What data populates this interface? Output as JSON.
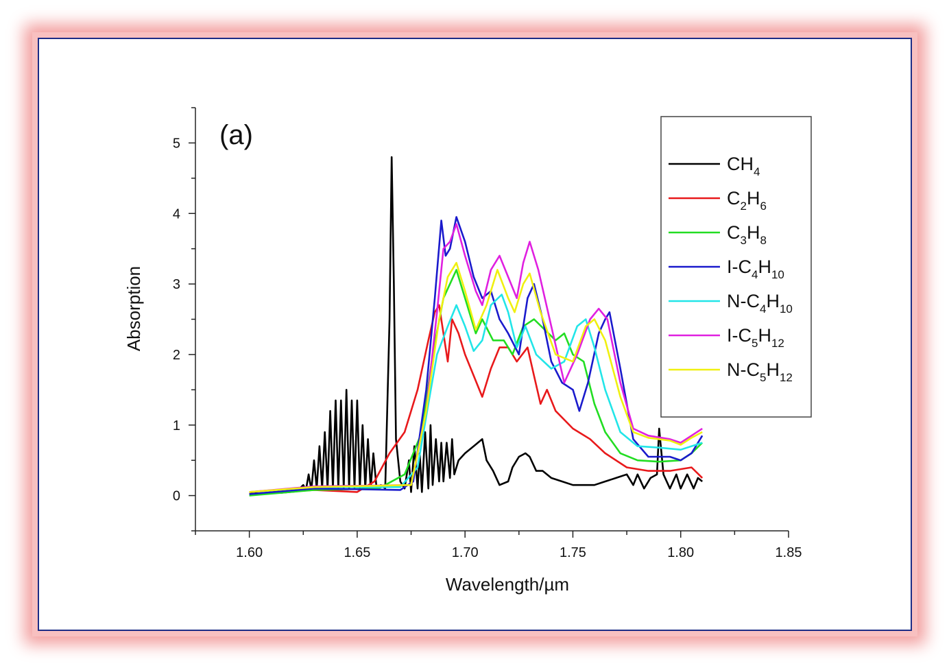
{
  "chart_data": {
    "type": "line",
    "panel_label": "(a)",
    "xlabel": "Wavelength/µm",
    "ylabel": "Absorption",
    "xlim": [
      1.575,
      1.85
    ],
    "ylim": [
      -0.5,
      5.5
    ],
    "xticks": [
      "1.60",
      "1.65",
      "1.70",
      "1.75",
      "1.80",
      "1.85"
    ],
    "yticks": [
      "0",
      "1",
      "2",
      "3",
      "4",
      "5"
    ],
    "grid": false,
    "legend_position": "top-right",
    "series": [
      {
        "name": "CH4",
        "color": "#000000",
        "points": [
          [
            1.6,
            0.03
          ],
          [
            1.615,
            0.04
          ],
          [
            1.622,
            0.06
          ],
          [
            1.625,
            0.15
          ],
          [
            1.62625,
            0.08
          ],
          [
            1.6275,
            0.3
          ],
          [
            1.62875,
            0.08
          ],
          [
            1.63,
            0.5
          ],
          [
            1.63125,
            0.1
          ],
          [
            1.6325,
            0.7
          ],
          [
            1.63375,
            0.1
          ],
          [
            1.635,
            0.9
          ],
          [
            1.63625,
            0.1
          ],
          [
            1.6375,
            1.2
          ],
          [
            1.63875,
            0.1
          ],
          [
            1.64,
            1.35
          ],
          [
            1.64125,
            0.1
          ],
          [
            1.6425,
            1.35
          ],
          [
            1.64375,
            0.1
          ],
          [
            1.645,
            1.5
          ],
          [
            1.64625,
            0.1
          ],
          [
            1.6475,
            1.35
          ],
          [
            1.64875,
            0.1
          ],
          [
            1.65,
            1.35
          ],
          [
            1.65125,
            0.1
          ],
          [
            1.6525,
            1.0
          ],
          [
            1.65375,
            0.1
          ],
          [
            1.655,
            0.8
          ],
          [
            1.65625,
            0.1
          ],
          [
            1.6575,
            0.6
          ],
          [
            1.659,
            0.1
          ],
          [
            1.661,
            0.15
          ],
          [
            1.663,
            0.1
          ],
          [
            1.665,
            2.5
          ],
          [
            1.666,
            4.8
          ],
          [
            1.667,
            3.0
          ],
          [
            1.668,
            0.8
          ],
          [
            1.67,
            0.2
          ],
          [
            1.672,
            0.1
          ],
          [
            1.674,
            0.5
          ],
          [
            1.675,
            0.05
          ],
          [
            1.6765,
            0.7
          ],
          [
            1.678,
            0.1
          ],
          [
            1.679,
            0.6
          ],
          [
            1.68,
            0.05
          ],
          [
            1.6815,
            0.9
          ],
          [
            1.683,
            0.1
          ],
          [
            1.684,
            1.0
          ],
          [
            1.685,
            0.15
          ],
          [
            1.6865,
            0.8
          ],
          [
            1.688,
            0.2
          ],
          [
            1.689,
            0.75
          ],
          [
            1.69,
            0.2
          ],
          [
            1.6915,
            0.75
          ],
          [
            1.693,
            0.25
          ],
          [
            1.694,
            0.8
          ],
          [
            1.695,
            0.3
          ],
          [
            1.697,
            0.5
          ],
          [
            1.7,
            0.6
          ],
          [
            1.704,
            0.7
          ],
          [
            1.708,
            0.8
          ],
          [
            1.71,
            0.5
          ],
          [
            1.713,
            0.35
          ],
          [
            1.716,
            0.15
          ],
          [
            1.72,
            0.2
          ],
          [
            1.722,
            0.4
          ],
          [
            1.725,
            0.55
          ],
          [
            1.728,
            0.6
          ],
          [
            1.73,
            0.55
          ],
          [
            1.733,
            0.35
          ],
          [
            1.736,
            0.35
          ],
          [
            1.74,
            0.25
          ],
          [
            1.745,
            0.2
          ],
          [
            1.75,
            0.15
          ],
          [
            1.755,
            0.15
          ],
          [
            1.76,
            0.15
          ],
          [
            1.765,
            0.2
          ],
          [
            1.77,
            0.25
          ],
          [
            1.775,
            0.3
          ],
          [
            1.778,
            0.15
          ],
          [
            1.78,
            0.3
          ],
          [
            1.783,
            0.1
          ],
          [
            1.786,
            0.25
          ],
          [
            1.789,
            0.3
          ],
          [
            1.79,
            0.95
          ],
          [
            1.792,
            0.3
          ],
          [
            1.795,
            0.1
          ],
          [
            1.798,
            0.3
          ],
          [
            1.8,
            0.1
          ],
          [
            1.803,
            0.3
          ],
          [
            1.806,
            0.1
          ],
          [
            1.808,
            0.25
          ],
          [
            1.81,
            0.2
          ]
        ]
      },
      {
        "name": "C2H6",
        "color": "#e8191b",
        "points": [
          [
            1.6,
            0.02
          ],
          [
            1.63,
            0.08
          ],
          [
            1.65,
            0.05
          ],
          [
            1.658,
            0.2
          ],
          [
            1.665,
            0.6
          ],
          [
            1.672,
            0.9
          ],
          [
            1.678,
            1.5
          ],
          [
            1.683,
            2.2
          ],
          [
            1.686,
            2.6
          ],
          [
            1.688,
            2.7
          ],
          [
            1.69,
            2.3
          ],
          [
            1.692,
            1.9
          ],
          [
            1.694,
            2.5
          ],
          [
            1.697,
            2.3
          ],
          [
            1.7,
            2.0
          ],
          [
            1.704,
            1.7
          ],
          [
            1.708,
            1.4
          ],
          [
            1.712,
            1.8
          ],
          [
            1.716,
            2.1
          ],
          [
            1.72,
            2.1
          ],
          [
            1.724,
            1.9
          ],
          [
            1.729,
            2.1
          ],
          [
            1.732,
            1.7
          ],
          [
            1.735,
            1.3
          ],
          [
            1.738,
            1.5
          ],
          [
            1.742,
            1.2
          ],
          [
            1.75,
            0.95
          ],
          [
            1.758,
            0.8
          ],
          [
            1.765,
            0.6
          ],
          [
            1.775,
            0.4
          ],
          [
            1.785,
            0.35
          ],
          [
            1.795,
            0.35
          ],
          [
            1.805,
            0.4
          ],
          [
            1.81,
            0.25
          ]
        ]
      },
      {
        "name": "C3H8",
        "color": "#22dd22",
        "points": [
          [
            1.6,
            0.0
          ],
          [
            1.63,
            0.08
          ],
          [
            1.66,
            0.1
          ],
          [
            1.672,
            0.3
          ],
          [
            1.68,
            0.9
          ],
          [
            1.685,
            2.0
          ],
          [
            1.69,
            2.8
          ],
          [
            1.693,
            3.0
          ],
          [
            1.696,
            3.2
          ],
          [
            1.7,
            2.8
          ],
          [
            1.705,
            2.3
          ],
          [
            1.708,
            2.5
          ],
          [
            1.713,
            2.2
          ],
          [
            1.718,
            2.2
          ],
          [
            1.722,
            2.0
          ],
          [
            1.727,
            2.4
          ],
          [
            1.732,
            2.5
          ],
          [
            1.737,
            2.35
          ],
          [
            1.742,
            2.2
          ],
          [
            1.746,
            2.3
          ],
          [
            1.75,
            2.0
          ],
          [
            1.755,
            1.9
          ],
          [
            1.76,
            1.3
          ],
          [
            1.765,
            0.9
          ],
          [
            1.772,
            0.6
          ],
          [
            1.78,
            0.5
          ],
          [
            1.79,
            0.48
          ],
          [
            1.8,
            0.5
          ],
          [
            1.805,
            0.6
          ],
          [
            1.81,
            0.75
          ]
        ]
      },
      {
        "name": "I-C4H10",
        "color": "#1a1acc",
        "points": [
          [
            1.6,
            0.02
          ],
          [
            1.63,
            0.1
          ],
          [
            1.67,
            0.08
          ],
          [
            1.676,
            0.2
          ],
          [
            1.682,
            1.5
          ],
          [
            1.686,
            2.8
          ],
          [
            1.689,
            3.9
          ],
          [
            1.691,
            3.4
          ],
          [
            1.693,
            3.5
          ],
          [
            1.696,
            3.95
          ],
          [
            1.7,
            3.6
          ],
          [
            1.704,
            3.1
          ],
          [
            1.708,
            2.8
          ],
          [
            1.712,
            2.9
          ],
          [
            1.716,
            2.5
          ],
          [
            1.72,
            2.3
          ],
          [
            1.725,
            2.0
          ],
          [
            1.729,
            2.8
          ],
          [
            1.732,
            3.0
          ],
          [
            1.736,
            2.5
          ],
          [
            1.74,
            1.9
          ],
          [
            1.745,
            1.6
          ],
          [
            1.75,
            1.5
          ],
          [
            1.753,
            1.2
          ],
          [
            1.757,
            1.6
          ],
          [
            1.762,
            2.3
          ],
          [
            1.765,
            2.5
          ],
          [
            1.767,
            2.6
          ],
          [
            1.772,
            1.8
          ],
          [
            1.778,
            0.8
          ],
          [
            1.785,
            0.55
          ],
          [
            1.795,
            0.55
          ],
          [
            1.8,
            0.5
          ],
          [
            1.805,
            0.6
          ],
          [
            1.81,
            0.85
          ]
        ]
      },
      {
        "name": "N-C4H10",
        "color": "#22e5e8",
        "points": [
          [
            1.6,
            0.05
          ],
          [
            1.63,
            0.12
          ],
          [
            1.67,
            0.12
          ],
          [
            1.678,
            0.4
          ],
          [
            1.683,
            1.3
          ],
          [
            1.687,
            2.0
          ],
          [
            1.692,
            2.4
          ],
          [
            1.696,
            2.7
          ],
          [
            1.7,
            2.4
          ],
          [
            1.704,
            2.05
          ],
          [
            1.708,
            2.2
          ],
          [
            1.712,
            2.7
          ],
          [
            1.717,
            2.85
          ],
          [
            1.72,
            2.6
          ],
          [
            1.724,
            2.1
          ],
          [
            1.728,
            2.4
          ],
          [
            1.733,
            2.0
          ],
          [
            1.74,
            1.8
          ],
          [
            1.746,
            1.9
          ],
          [
            1.752,
            2.4
          ],
          [
            1.756,
            2.5
          ],
          [
            1.76,
            2.1
          ],
          [
            1.765,
            1.5
          ],
          [
            1.772,
            0.9
          ],
          [
            1.78,
            0.7
          ],
          [
            1.79,
            0.68
          ],
          [
            1.8,
            0.65
          ],
          [
            1.81,
            0.75
          ]
        ]
      },
      {
        "name": "I-C5H12",
        "color": "#e020e0",
        "points": [
          [
            1.6,
            0.05
          ],
          [
            1.63,
            0.13
          ],
          [
            1.675,
            0.15
          ],
          [
            1.682,
            1.2
          ],
          [
            1.687,
            2.6
          ],
          [
            1.69,
            3.5
          ],
          [
            1.693,
            3.6
          ],
          [
            1.696,
            3.85
          ],
          [
            1.7,
            3.4
          ],
          [
            1.705,
            2.9
          ],
          [
            1.708,
            2.7
          ],
          [
            1.712,
            3.2
          ],
          [
            1.716,
            3.4
          ],
          [
            1.72,
            3.1
          ],
          [
            1.724,
            2.8
          ],
          [
            1.727,
            3.3
          ],
          [
            1.73,
            3.6
          ],
          [
            1.734,
            3.2
          ],
          [
            1.74,
            2.4
          ],
          [
            1.746,
            1.6
          ],
          [
            1.752,
            2.0
          ],
          [
            1.758,
            2.5
          ],
          [
            1.762,
            2.65
          ],
          [
            1.766,
            2.5
          ],
          [
            1.772,
            1.6
          ],
          [
            1.778,
            0.95
          ],
          [
            1.785,
            0.85
          ],
          [
            1.795,
            0.8
          ],
          [
            1.8,
            0.75
          ],
          [
            1.805,
            0.85
          ],
          [
            1.81,
            0.95
          ]
        ]
      },
      {
        "name": "N-C5H12",
        "color": "#f0f010",
        "points": [
          [
            1.6,
            0.05
          ],
          [
            1.63,
            0.12
          ],
          [
            1.675,
            0.15
          ],
          [
            1.682,
            1.2
          ],
          [
            1.688,
            2.5
          ],
          [
            1.692,
            3.1
          ],
          [
            1.696,
            3.3
          ],
          [
            1.7,
            2.9
          ],
          [
            1.705,
            2.35
          ],
          [
            1.71,
            2.7
          ],
          [
            1.715,
            3.2
          ],
          [
            1.72,
            2.8
          ],
          [
            1.723,
            2.6
          ],
          [
            1.727,
            3.0
          ],
          [
            1.73,
            3.15
          ],
          [
            1.735,
            2.6
          ],
          [
            1.742,
            2.0
          ],
          [
            1.75,
            1.9
          ],
          [
            1.756,
            2.4
          ],
          [
            1.76,
            2.5
          ],
          [
            1.765,
            2.2
          ],
          [
            1.772,
            1.4
          ],
          [
            1.778,
            0.9
          ],
          [
            1.785,
            0.82
          ],
          [
            1.795,
            0.78
          ],
          [
            1.8,
            0.72
          ],
          [
            1.805,
            0.82
          ],
          [
            1.81,
            0.9
          ]
        ]
      }
    ]
  },
  "frame": {
    "border_color": "#1c2c86",
    "glow_color": "#f3a0a0"
  }
}
